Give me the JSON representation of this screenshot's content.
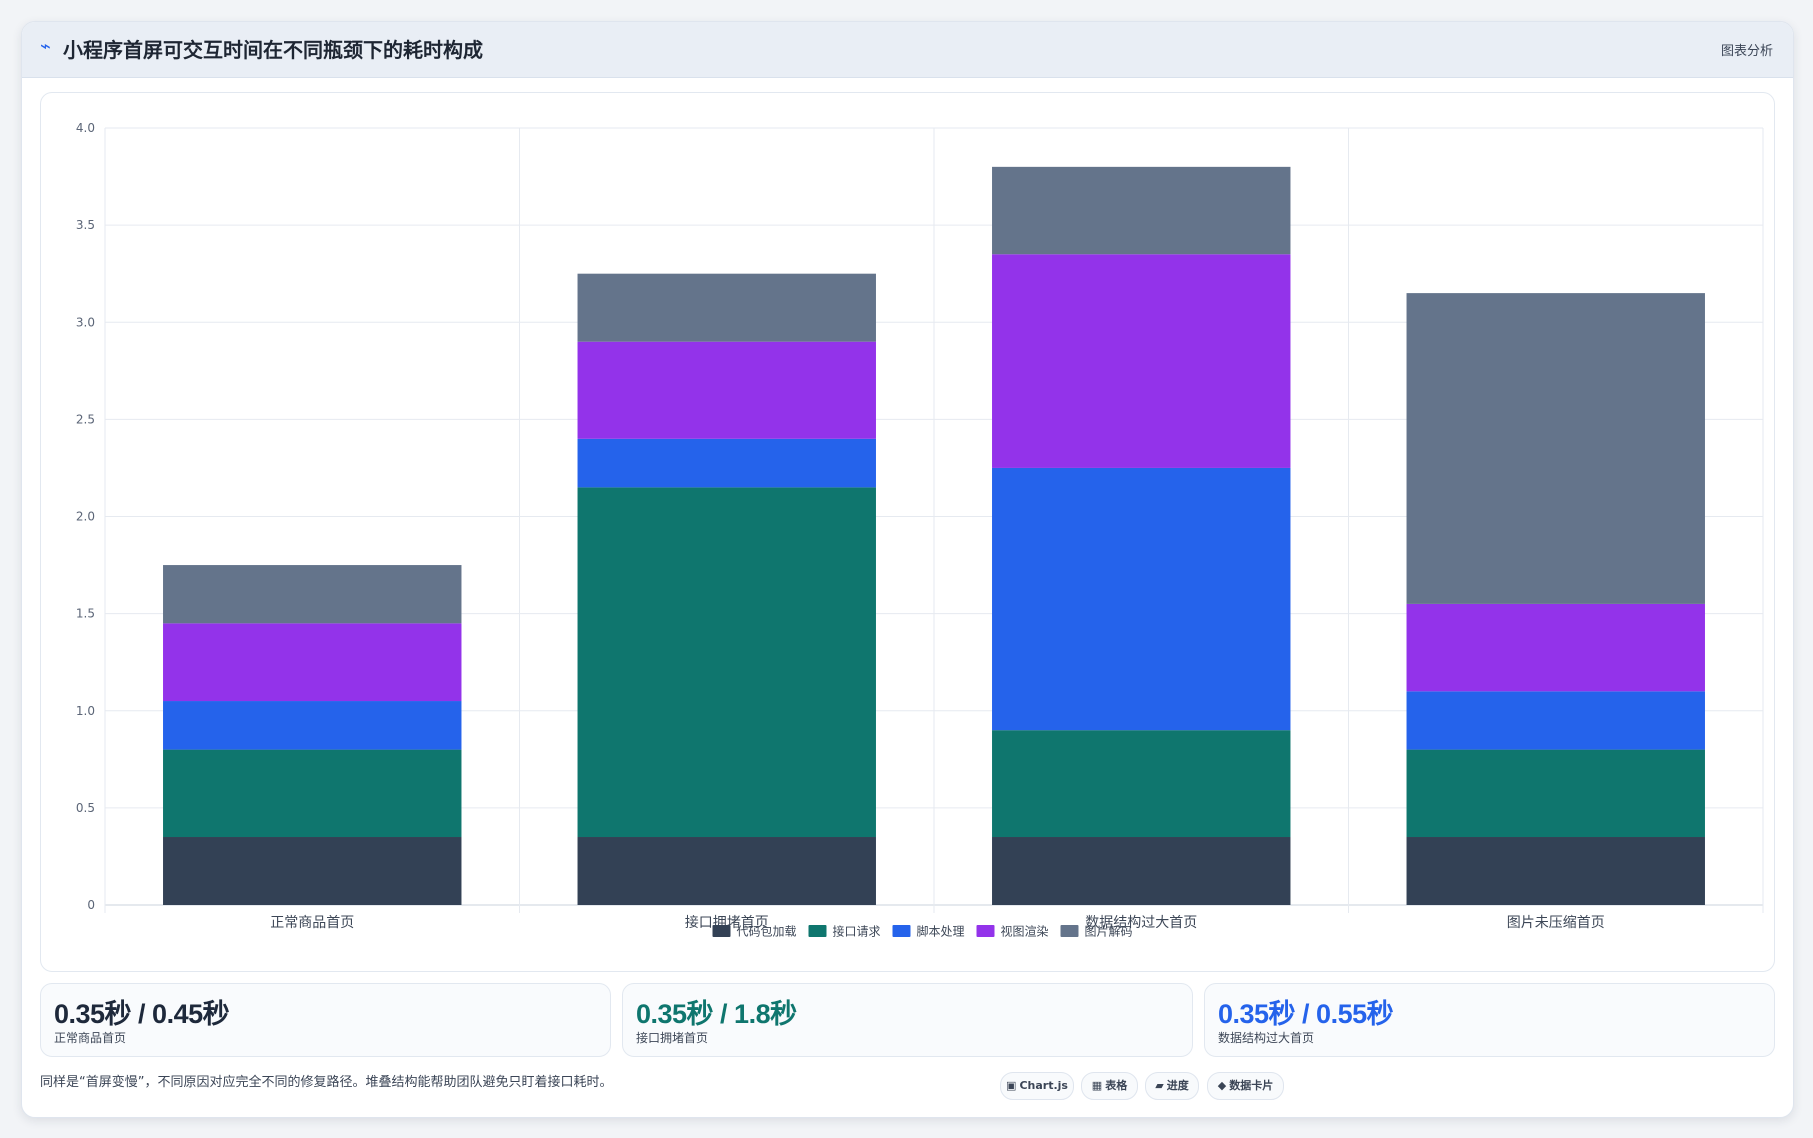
{
  "header": {
    "icon": "chart-trend-icon",
    "title": "小程序首屏可交互时间在不同瓶颈下的耗时构成",
    "action_label": "图表分析"
  },
  "chart_data": {
    "type": "bar",
    "stacked": true,
    "categories": [
      "正常商品首页",
      "接口拥堵首页",
      "数据结构过大首页",
      "图片未压缩首页"
    ],
    "series": [
      {
        "name": "代码包加载",
        "color": "#334155",
        "values": [
          0.35,
          0.35,
          0.35,
          0.35
        ]
      },
      {
        "name": "接口请求",
        "color": "#0f766e",
        "values": [
          0.45,
          1.8,
          0.55,
          0.45
        ]
      },
      {
        "name": "脚本处理",
        "color": "#2563eb",
        "values": [
          0.25,
          0.25,
          1.35,
          0.3
        ]
      },
      {
        "name": "视图渲染",
        "color": "#9333ea",
        "values": [
          0.4,
          0.5,
          1.1,
          0.45
        ]
      },
      {
        "name": "图片解码",
        "color": "#64748b",
        "values": [
          0.3,
          0.35,
          0.45,
          1.6
        ]
      }
    ],
    "ylim": [
      0,
      4.0
    ],
    "yticks": [
      "0",
      "0.5",
      "1.0",
      "1.5",
      "2.0",
      "2.5",
      "3.0",
      "3.5",
      "4.0"
    ],
    "grid": true,
    "legend_position": "bottom"
  },
  "stats": [
    {
      "value": "0.35秒 / 0.45秒",
      "label": "正常商品首页",
      "color": "#1e293b"
    },
    {
      "value": "0.35秒 / 1.8秒",
      "label": "接口拥堵首页",
      "color": "#0f766e"
    },
    {
      "value": "0.35秒 / 0.55秒",
      "label": "数据结构过大首页",
      "color": "#2563eb"
    }
  ],
  "footer": {
    "note": "同样是“首屏变慢”，不同原因对应完全不同的修复路径。堆叠结构能帮助团队避免只盯着接口耗时。",
    "chips": [
      {
        "icon": "▣",
        "label": "Chart.js"
      },
      {
        "icon": "▦",
        "label": "表格"
      },
      {
        "icon": "▰",
        "label": "进度"
      },
      {
        "icon": "◆",
        "label": "数据卡片"
      }
    ]
  }
}
